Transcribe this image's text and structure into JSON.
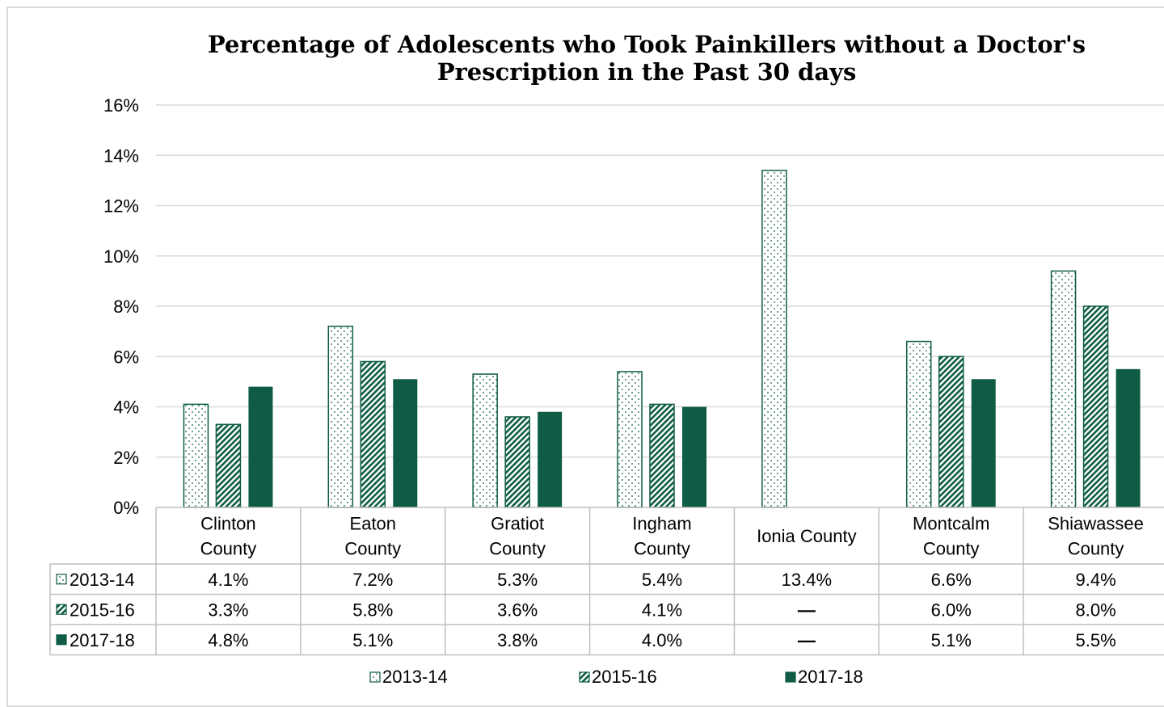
{
  "chart_data": {
    "type": "bar",
    "title_line1": "Percentage of Adolescents who Took Painkillers without a Doctor's",
    "title_line2": "Prescription in the Past 30 days",
    "categories": [
      [
        "Clinton",
        "County"
      ],
      [
        "Eaton",
        "County"
      ],
      [
        "Gratiot",
        "County"
      ],
      [
        "Ingham",
        "County"
      ],
      [
        "Ionia County"
      ],
      [
        "Montcalm",
        "County"
      ],
      [
        "Shiawassee",
        "County"
      ]
    ],
    "ylim": [
      0,
      16
    ],
    "yticks": [
      "0%",
      "2%",
      "4%",
      "6%",
      "8%",
      "10%",
      "12%",
      "14%",
      "16%"
    ],
    "grid": true,
    "legend_position": "bottom",
    "series": [
      {
        "name": "2013-14",
        "pattern": "dots",
        "values": [
          4.1,
          7.2,
          5.3,
          5.4,
          13.4,
          6.6,
          9.4
        ],
        "labels": [
          "4.1%",
          "7.2%",
          "5.3%",
          "5.4%",
          "13.4%",
          "6.6%",
          "9.4%"
        ]
      },
      {
        "name": "2015-16",
        "pattern": "hatch",
        "values": [
          3.3,
          5.8,
          3.6,
          4.1,
          null,
          6.0,
          8.0
        ],
        "labels": [
          "3.3%",
          "5.8%",
          "3.6%",
          "4.1%",
          "—",
          "6.0%",
          "8.0%"
        ]
      },
      {
        "name": "2017-18",
        "pattern": "solid",
        "values": [
          4.8,
          5.1,
          3.8,
          4.0,
          null,
          5.1,
          5.5
        ],
        "labels": [
          "4.8%",
          "5.1%",
          "3.8%",
          "4.0%",
          "—",
          "5.1%",
          "5.5%"
        ]
      }
    ],
    "colors": {
      "accent": "#0e5c45",
      "grid": "#d9d9d9",
      "table_border": "#bfbfbf"
    }
  }
}
